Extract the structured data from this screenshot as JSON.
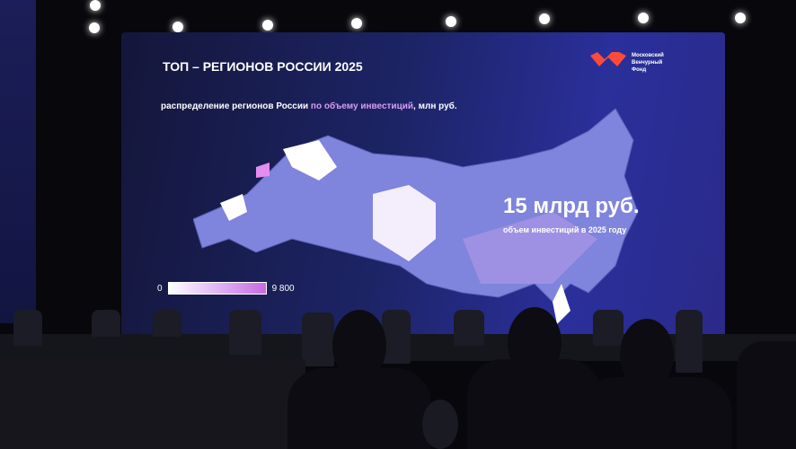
{
  "slide": {
    "title": "ТОП – РЕГИОНОВ РОССИИ 2025",
    "subtitle_pre": "распределение регионов России ",
    "subtitle_highlight": "по объему инвестиций",
    "subtitle_post": ", млн руб.",
    "logo_text": "Московский Венчурный Фонд",
    "headline": "15 млрд руб.",
    "headline_sub": "объем инвестиций в 2025 году",
    "legend_min": "0",
    "legend_max": "9 800"
  },
  "colors": {
    "screen": "#1d2466",
    "highlight": "#d79cf5",
    "logo": "#ff4a3a",
    "map": "#7a7fd8"
  }
}
